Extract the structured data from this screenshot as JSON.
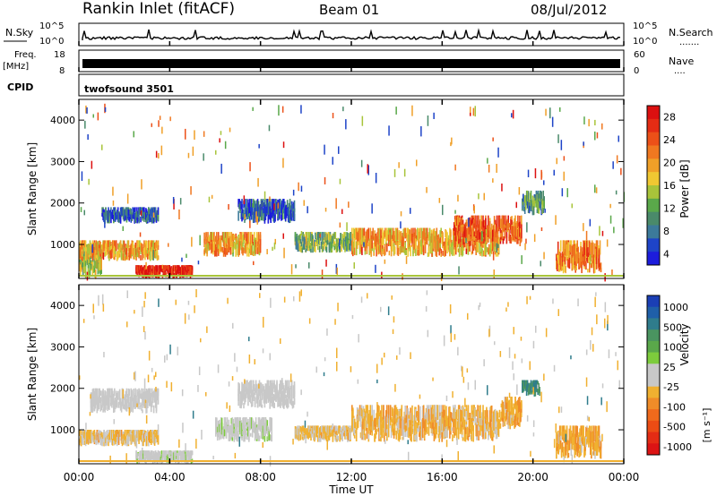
{
  "header": {
    "title": "Rankin Inlet (fitACF)",
    "beam": "Beam 01",
    "date": "08/Jul/2012"
  },
  "noise_panel": {
    "left_label": "N.Sky",
    "right_label": "N.Search",
    "left_ticks": [
      "10^5",
      "10^0"
    ],
    "right_ticks": [
      "10^5",
      "10^0"
    ],
    "right_legend": "......."
  },
  "freq_panel": {
    "left_label_1": "Freq.",
    "left_label_2": "[MHz]",
    "right_label": "Nave",
    "left_ticks": [
      "18",
      "8"
    ],
    "right_ticks": [
      "60",
      "0"
    ],
    "right_legend": "...."
  },
  "cpid": {
    "label": "CPID",
    "value": "twofsound 3501"
  },
  "axes": {
    "ylabel": "Slant Range [km]",
    "xlabel": "Time UT",
    "y_ticks": [
      "1000",
      "2000",
      "3000",
      "4000"
    ],
    "x_ticks": [
      "00:00",
      "04:00",
      "08:00",
      "12:00",
      "16:00",
      "20:00",
      "00:00"
    ]
  },
  "colorbars": {
    "power": {
      "label": "Power [dB]",
      "ticks": [
        "4",
        "8",
        "12",
        "16",
        "20",
        "24",
        "28"
      ],
      "colors": [
        "#1c1cdc",
        "#1e44c8",
        "#3c7a9a",
        "#4a8a6a",
        "#5aa84a",
        "#a8c43a",
        "#f0c832",
        "#f0a028",
        "#f07820",
        "#ec5018",
        "#e42c14",
        "#dc1010"
      ]
    },
    "velocity": {
      "label": "Velocity",
      "units": "[m s⁻¹]",
      "ticks": [
        "1000",
        "500",
        "100",
        "25",
        "-25",
        "-100",
        "-500",
        "-1000"
      ],
      "colors": [
        "#1b3fb5",
        "#1f5fa8",
        "#2f7c8c",
        "#4a9460",
        "#5aa84a",
        "#7dcc3c",
        "#c8c8c8",
        "#c8c8c8",
        "#f0b030",
        "#f08c28",
        "#f06a1c",
        "#ec4c14",
        "#e42c14",
        "#dc1414"
      ]
    }
  },
  "chart_data": [
    {
      "type": "heatmap",
      "title": "Power",
      "xlabel": "Time UT",
      "ylabel": "Slant Range [km]",
      "xlim": [
        0,
        24
      ],
      "ylim": [
        180,
        4500
      ],
      "units": "dB",
      "blobs": [
        {
          "t0": 0.0,
          "t1": 1.0,
          "r0": 180,
          "r1": 1000,
          "value": 14
        },
        {
          "t0": 0.0,
          "t1": 3.5,
          "r0": 600,
          "r1": 1100,
          "value": 18
        },
        {
          "t0": 1.0,
          "t1": 3.5,
          "r0": 1500,
          "r1": 1900,
          "value": 6
        },
        {
          "t0": 2.5,
          "t1": 5.0,
          "r0": 180,
          "r1": 500,
          "value": 26
        },
        {
          "t0": 5.5,
          "t1": 8.0,
          "r0": 700,
          "r1": 1300,
          "value": 18
        },
        {
          "t0": 7.0,
          "t1": 9.5,
          "r0": 1500,
          "r1": 2100,
          "value": 6
        },
        {
          "t0": 9.5,
          "t1": 12.0,
          "r0": 800,
          "r1": 1300,
          "value": 12
        },
        {
          "t0": 12.0,
          "t1": 18.5,
          "r0": 700,
          "r1": 1400,
          "value": 18
        },
        {
          "t0": 16.5,
          "t1": 19.5,
          "r0": 1000,
          "r1": 1700,
          "value": 22
        },
        {
          "t0": 19.5,
          "t1": 20.5,
          "r0": 1700,
          "r1": 2300,
          "value": 10
        },
        {
          "t0": 21.0,
          "t1": 23.0,
          "r0": 300,
          "r1": 1100,
          "value": 20
        }
      ]
    },
    {
      "type": "heatmap",
      "title": "Velocity",
      "xlabel": "Time UT",
      "ylabel": "Slant Range [km]",
      "xlim": [
        0,
        24
      ],
      "ylim": [
        180,
        4500
      ],
      "units": "m s-1",
      "blobs": [
        {
          "t0": 0.0,
          "t1": 3.5,
          "r0": 600,
          "r1": 1000,
          "value": -200
        },
        {
          "t0": 0.5,
          "t1": 3.5,
          "r0": 1400,
          "r1": 2000,
          "value": 0
        },
        {
          "t0": 2.5,
          "t1": 5.0,
          "r0": 180,
          "r1": 500,
          "value": 60
        },
        {
          "t0": 6.0,
          "t1": 8.5,
          "r0": 700,
          "r1": 1300,
          "value": 80
        },
        {
          "t0": 7.0,
          "t1": 9.5,
          "r0": 1500,
          "r1": 2200,
          "value": 0
        },
        {
          "t0": 9.5,
          "t1": 12.0,
          "r0": 700,
          "r1": 1100,
          "value": -200
        },
        {
          "t0": 12.0,
          "t1": 18.5,
          "r0": 700,
          "r1": 1600,
          "value": -250
        },
        {
          "t0": 18.5,
          "t1": 19.5,
          "r0": 1000,
          "r1": 1800,
          "value": -300
        },
        {
          "t0": 19.5,
          "t1": 20.3,
          "r0": 1800,
          "r1": 2200,
          "value": 700
        },
        {
          "t0": 21.0,
          "t1": 23.0,
          "r0": 300,
          "r1": 1100,
          "value": -300
        }
      ]
    }
  ]
}
